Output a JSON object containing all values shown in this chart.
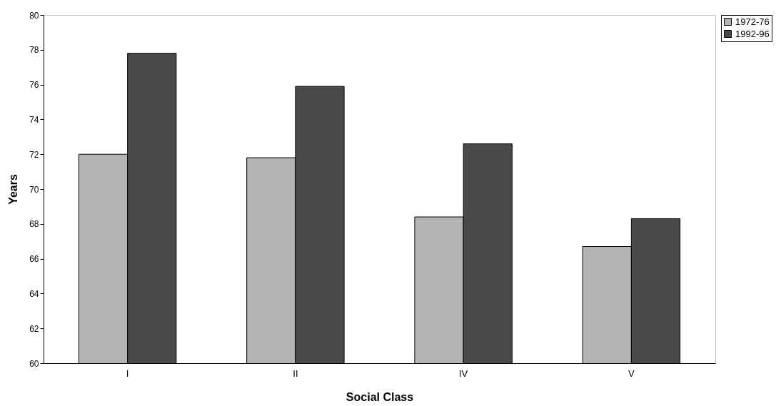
{
  "chart_data": {
    "type": "bar",
    "xlabel": "Social Class",
    "ylabel": "Years",
    "categories": [
      "I",
      "II",
      "IV",
      "V"
    ],
    "series": [
      {
        "name": "1972-76",
        "color": "#b4b4b4",
        "values": [
          72.0,
          71.8,
          68.4,
          66.7
        ]
      },
      {
        "name": "1992-96",
        "color": "#4a4a4a",
        "values": [
          77.8,
          75.9,
          72.6,
          68.3
        ]
      }
    ],
    "ylim": [
      60,
      80
    ],
    "yticks": [
      60,
      62,
      64,
      66,
      68,
      70,
      72,
      74,
      76,
      78,
      80
    ],
    "grid": false,
    "legend": "right"
  }
}
